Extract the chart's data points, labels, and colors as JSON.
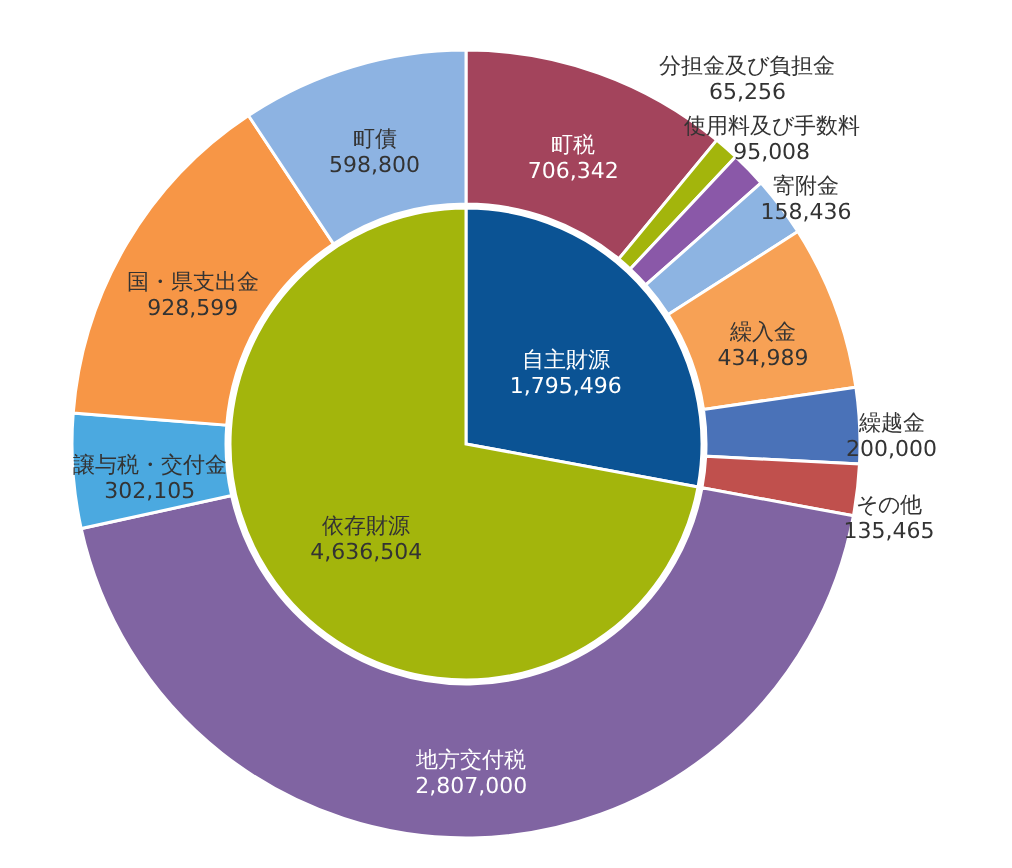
{
  "chart_data": [
    {
      "type": "pie",
      "categories": [
        "自主財源",
        "依存財源"
      ],
      "values": [
        1795496,
        4636504
      ],
      "value_labels": [
        "1,795,496",
        "4,636,504"
      ],
      "colors": [
        "#0b5394",
        "#a3b50c"
      ]
    },
    {
      "type": "donut",
      "categories": [
        "町税",
        "分担金及び負担金",
        "使用料及び手数料",
        "寄附金",
        "繰入金",
        "繰越金",
        "その他",
        "地方交付税",
        "譲与税・交付金",
        "国・県支出金",
        "町債"
      ],
      "values": [
        706342,
        65256,
        95008,
        158436,
        434989,
        200000,
        135465,
        2807000,
        302105,
        928599,
        598800
      ],
      "value_labels": [
        "706,342",
        "65,256",
        "95,008",
        "158,436",
        "434,989",
        "200,000",
        "135,465",
        "2,807,000",
        "302,105",
        "928,599",
        "598,800"
      ],
      "colors": [
        "#a3445c",
        "#a3b50c",
        "#8a58a8",
        "#8db4e2",
        "#f7a155",
        "#4a72b8",
        "#c0504d",
        "#8064a2",
        "#4ba9e0",
        "#f79646",
        "#8db3e2"
      ]
    }
  ]
}
